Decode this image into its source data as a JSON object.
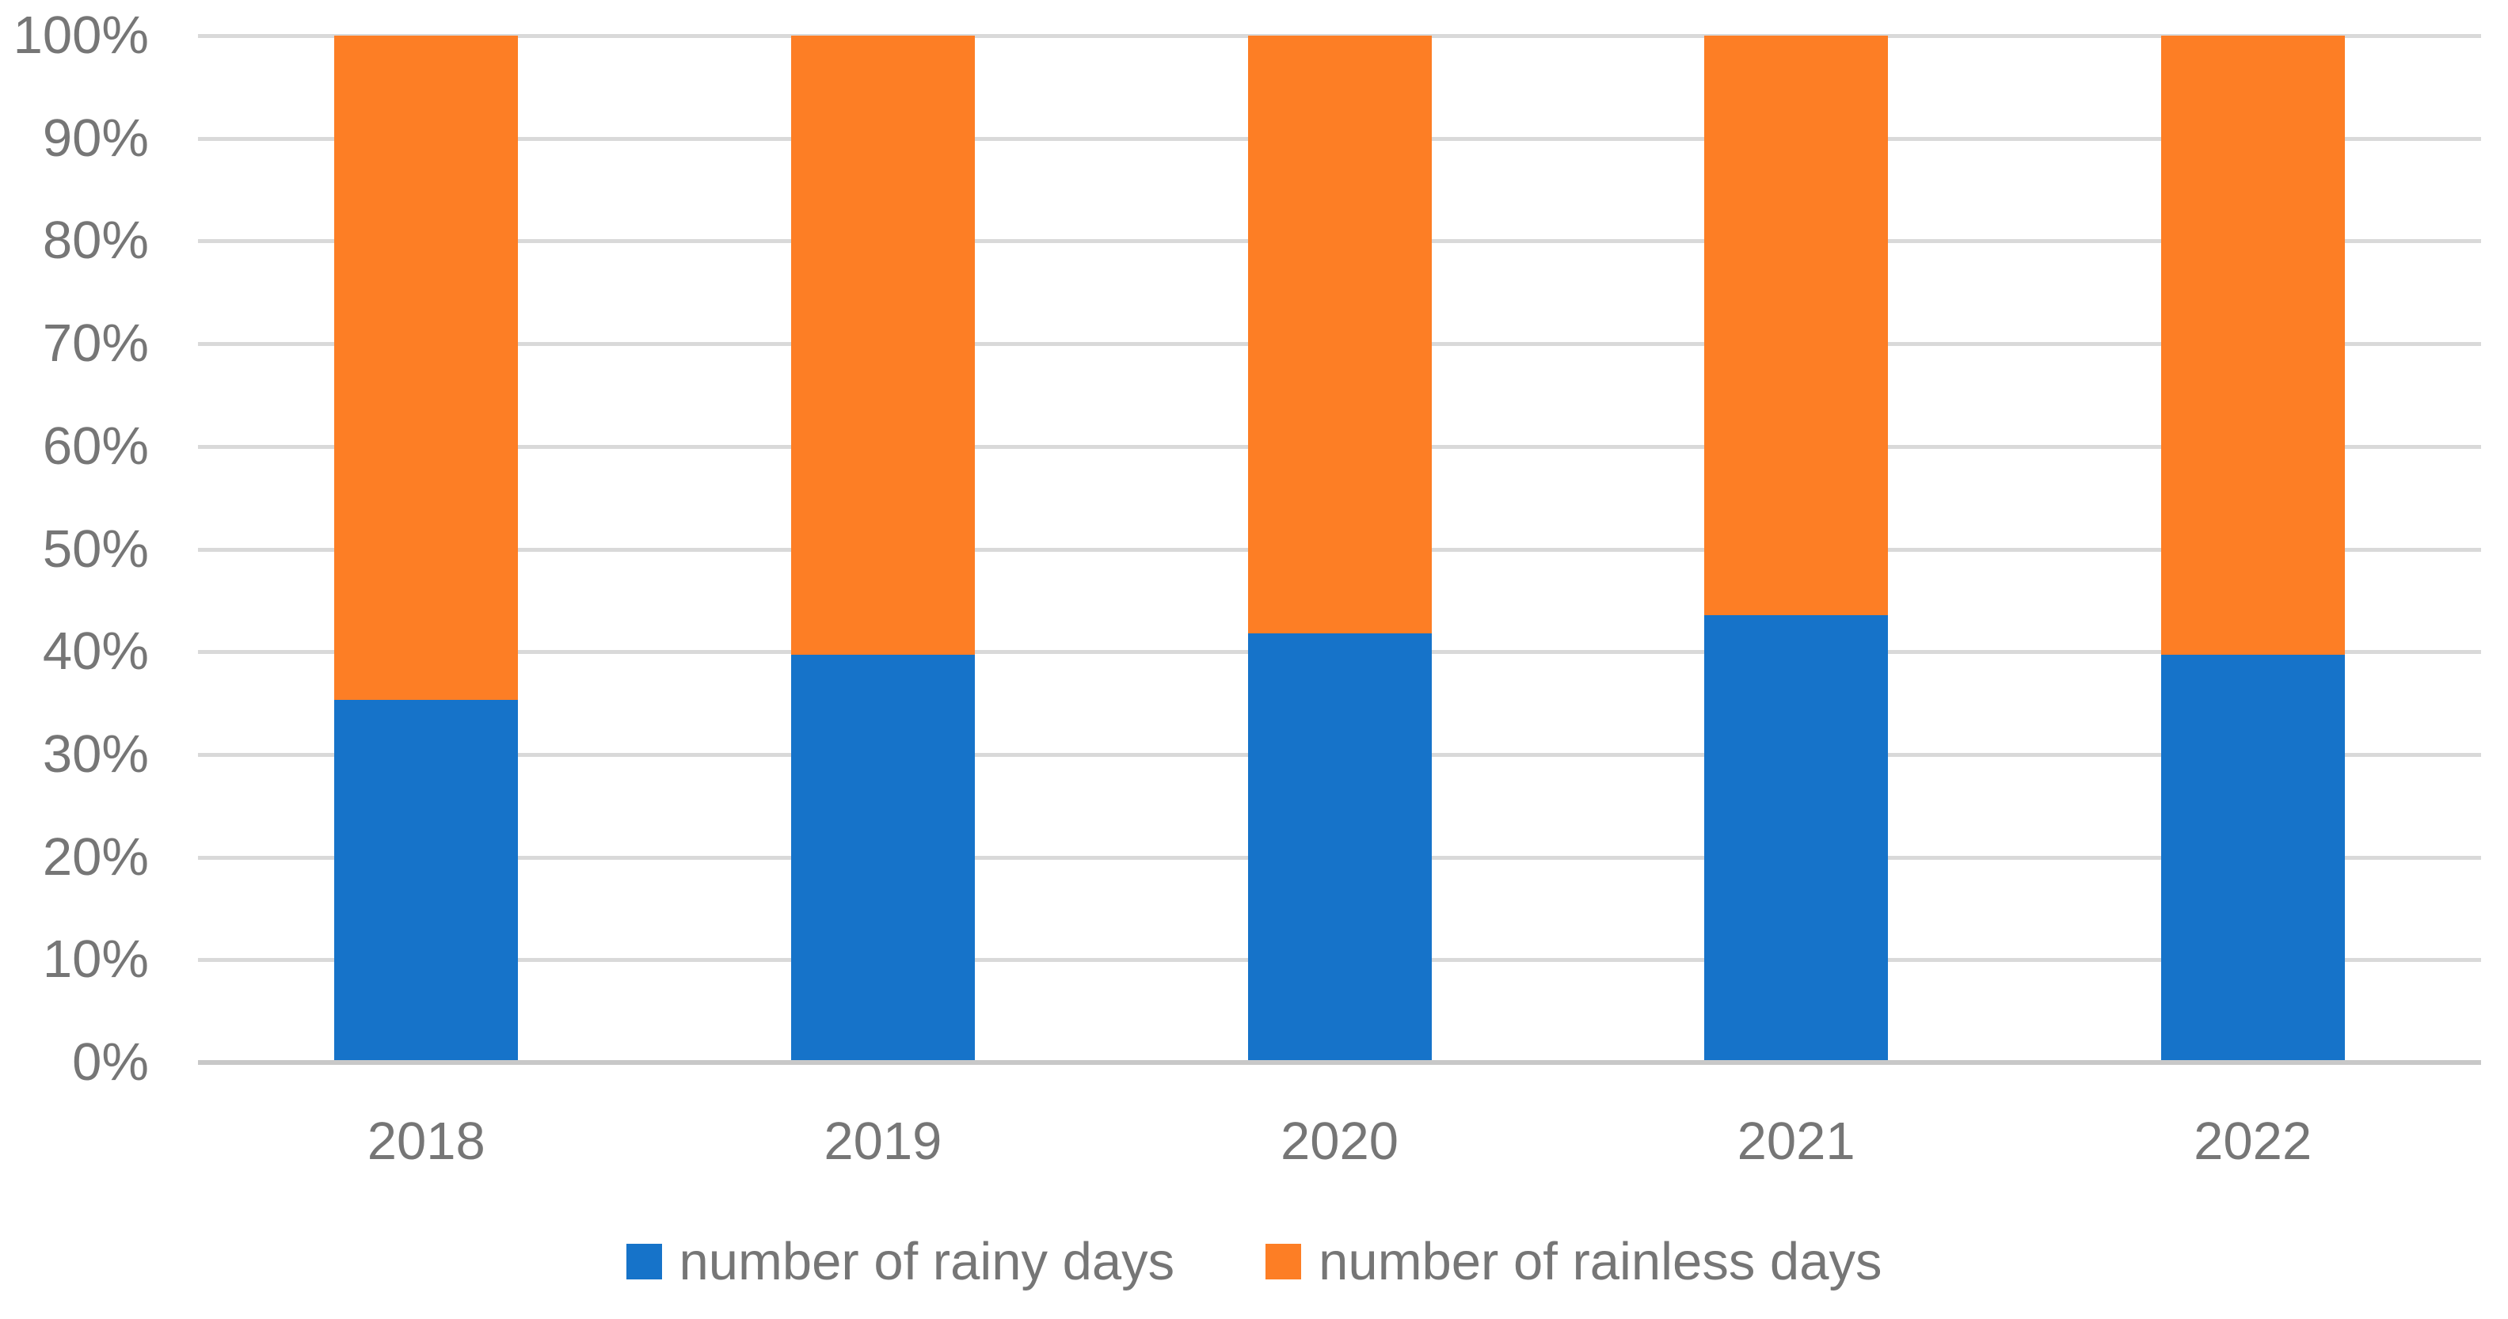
{
  "chart_data": {
    "type": "bar",
    "variant": "stacked-100-percent",
    "title": "",
    "xlabel": "",
    "ylabel": "",
    "categories": [
      "2018",
      "2019",
      "2020",
      "2021",
      "2022"
    ],
    "series": [
      {
        "name": "number of rainy days",
        "color": "#1673C9",
        "values": [
          35.3,
          39.7,
          41.8,
          43.6,
          39.7
        ]
      },
      {
        "name": "number of rainless days",
        "color": "#FD7E25",
        "values": [
          64.7,
          60.3,
          58.2,
          56.4,
          60.3
        ]
      }
    ],
    "ylim": [
      0,
      100
    ],
    "y_ticks": [
      "0%",
      "10%",
      "20%",
      "30%",
      "40%",
      "50%",
      "60%",
      "70%",
      "80%",
      "90%",
      "100%"
    ],
    "grid": true,
    "legend_position": "bottom"
  },
  "style": {
    "background": "#FFFFFF",
    "gridline_color": "#D9D9D9",
    "axis_line_color": "#C8C8C8",
    "tick_label_color": "#767676",
    "legend_text_color": "#767676"
  }
}
